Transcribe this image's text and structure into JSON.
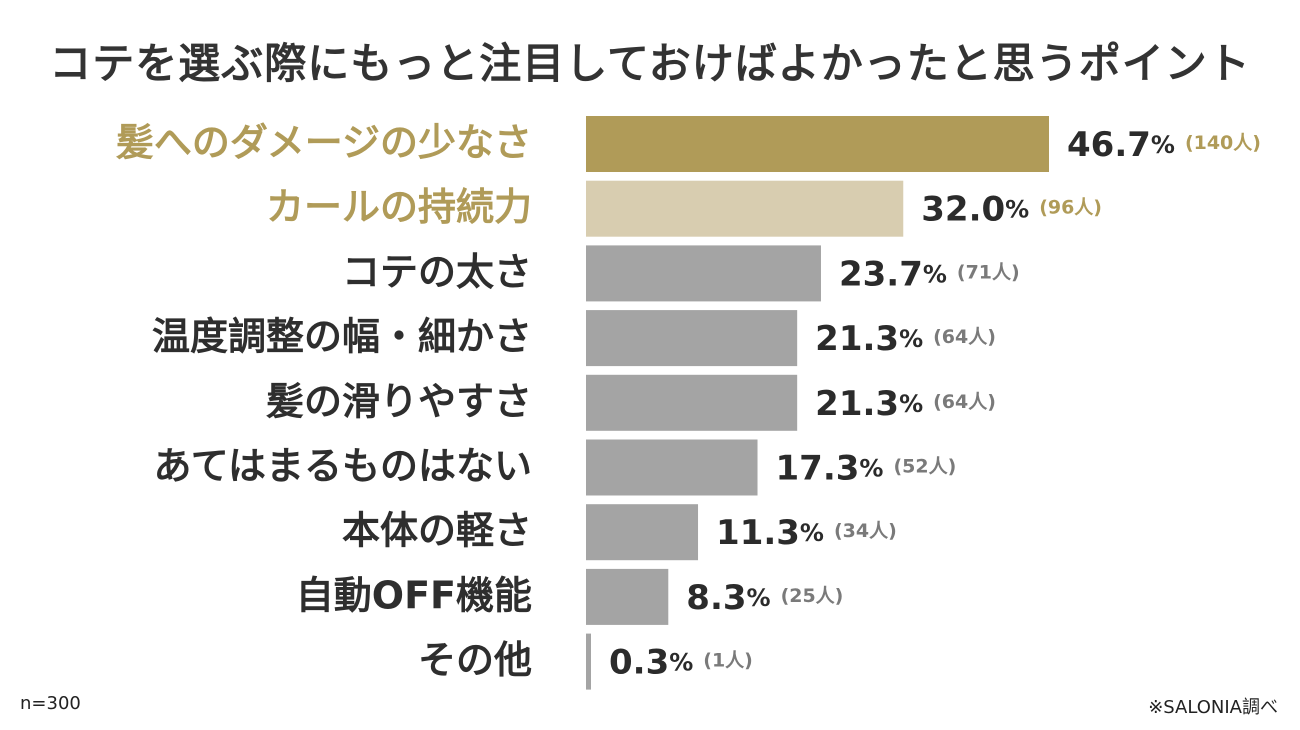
{
  "title": "コテを選ぶ際にもっと注目しておけばよかったと思うポイント",
  "sample_note": "n=300",
  "source_note": "※SALONIA調べ",
  "colors": {
    "highlight_1": "#b09b58",
    "highlight_2": "#d8cdb0",
    "default_bar": "#a4a4a4",
    "highlight_label": "#b09b58",
    "default_label": "#2e2e2e",
    "value_text": "#2b2b2b",
    "count_text_highlight": "#b09b58",
    "count_text_default": "#7a7a7a"
  },
  "chart_data": {
    "type": "bar",
    "orientation": "horizontal",
    "title": "コテを選ぶ際にもっと注目しておけばよかったと思うポイント",
    "categories": [
      "髪へのダメージの少なさ",
      "カールの持続力",
      "コテの太さ",
      "温度調整の幅・細かさ",
      "髪の滑りやすさ",
      "あてはまるものはない",
      "本体の軽さ",
      "自動OFF機能",
      "その他"
    ],
    "values": [
      46.7,
      32.0,
      23.7,
      21.3,
      21.3,
      17.3,
      11.3,
      8.3,
      0.3
    ],
    "value_labels": [
      "46.7",
      "32.0",
      "23.7",
      "21.3",
      "21.3",
      "17.3",
      "11.3",
      "8.3",
      "0.3"
    ],
    "unit": "%",
    "counts": [
      "(140人)",
      "(96人)",
      "(71人)",
      "(64人)",
      "(64人)",
      "(52人)",
      "(34人)",
      "(25人)",
      "(1人)"
    ],
    "highlight": [
      1,
      2,
      0,
      0,
      0,
      0,
      0,
      0,
      0
    ],
    "xlim": [
      0,
      50
    ],
    "grid": false,
    "legend": "none"
  }
}
